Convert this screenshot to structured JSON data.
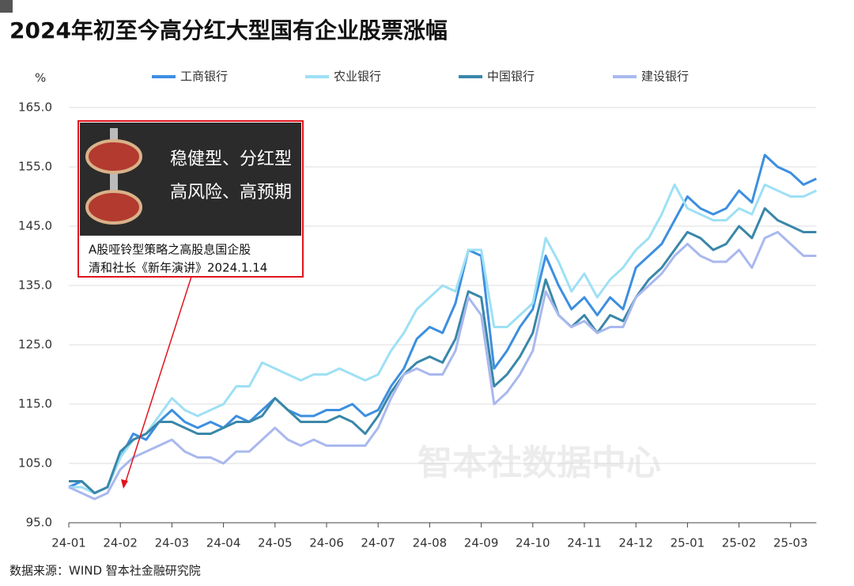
{
  "chart_data": {
    "type": "line",
    "title": "2024年初至今高分红大型国有企业股票涨幅",
    "y_label": "%",
    "source": "数据来源：WIND 智本社金融研究院",
    "watermark": "智本社数据中心",
    "annotation": {
      "lines": [
        "稳健型、分红型",
        "高风险、高预期"
      ],
      "caption": [
        "A股哑铃型策略之高股息国企股",
        "清和社长《新年演讲》2024.1.14"
      ]
    },
    "categories": [
      "24-01",
      null,
      null,
      null,
      "24-02",
      null,
      null,
      null,
      "24-03",
      null,
      null,
      null,
      "24-04",
      null,
      null,
      null,
      "24-05",
      null,
      null,
      null,
      "24-06",
      null,
      null,
      null,
      "24-07",
      null,
      null,
      null,
      "24-08",
      null,
      null,
      null,
      "24-09",
      null,
      null,
      null,
      "24-10",
      null,
      null,
      null,
      "24-11",
      null,
      null,
      null,
      "24-12",
      null,
      null,
      null,
      "25-01",
      null,
      null,
      null,
      "25-02",
      null,
      null,
      null,
      "25-03",
      null,
      null
    ],
    "ylim": [
      95,
      165
    ],
    "yticks": [
      {
        "value": 95,
        "label": "95.0"
      },
      {
        "value": 105,
        "label": "105.0"
      },
      {
        "value": 115,
        "label": "115.0"
      },
      {
        "value": 125,
        "label": "125.0"
      },
      {
        "value": 135,
        "label": "135.0"
      },
      {
        "value": 145,
        "label": "145.0"
      },
      {
        "value": 155,
        "label": "155.0"
      },
      {
        "value": 165,
        "label": "165.0"
      }
    ],
    "grid": true,
    "series": [
      {
        "name": "工商银行",
        "color": "#3d8fe0",
        "values": [
          101,
          102,
          100,
          101,
          106,
          110,
          109,
          112,
          114,
          112,
          111,
          112,
          111,
          113,
          112,
          114,
          116,
          114,
          113,
          113,
          114,
          114,
          115,
          113,
          114,
          118,
          121,
          126,
          128,
          127,
          132,
          141,
          140,
          121,
          124,
          128,
          131,
          140,
          135,
          131,
          133,
          130,
          133,
          131,
          138,
          140,
          142,
          146,
          150,
          148,
          147,
          148,
          151,
          149,
          157,
          155,
          154,
          152,
          153
        ]
      },
      {
        "name": "农业银行",
        "color": "#9ee0f5",
        "values": [
          101,
          101,
          100,
          101,
          106,
          109,
          110,
          113,
          116,
          114,
          113,
          114,
          115,
          118,
          118,
          122,
          121,
          120,
          119,
          120,
          120,
          121,
          120,
          119,
          120,
          124,
          127,
          131,
          133,
          135,
          134,
          141,
          141,
          128,
          128,
          130,
          132,
          143,
          139,
          134,
          137,
          133,
          136,
          138,
          141,
          143,
          147,
          152,
          148,
          147,
          146,
          146,
          148,
          147,
          152,
          151,
          150,
          150,
          151
        ]
      },
      {
        "name": "中国银行",
        "color": "#3a87a8",
        "values": [
          102,
          102,
          100,
          101,
          107,
          109,
          110,
          112,
          112,
          111,
          110,
          110,
          111,
          112,
          112,
          113,
          116,
          114,
          112,
          112,
          112,
          113,
          112,
          110,
          113,
          117,
          120,
          122,
          123,
          122,
          126,
          134,
          133,
          118,
          120,
          123,
          127,
          136,
          130,
          128,
          130,
          127,
          130,
          129,
          133,
          136,
          138,
          141,
          144,
          143,
          141,
          142,
          145,
          143,
          148,
          146,
          145,
          144,
          144
        ]
      },
      {
        "name": "建设银行",
        "color": "#a9b8ee",
        "values": [
          101,
          100,
          99,
          100,
          104,
          106,
          107,
          108,
          109,
          107,
          106,
          106,
          105,
          107,
          107,
          109,
          111,
          109,
          108,
          109,
          108,
          108,
          108,
          108,
          111,
          116,
          120,
          121,
          120,
          120,
          124,
          133,
          130,
          115,
          117,
          120,
          124,
          134,
          130,
          128,
          129,
          127,
          128,
          128,
          133,
          135,
          137,
          140,
          142,
          140,
          139,
          139,
          141,
          138,
          143,
          144,
          142,
          140,
          140
        ]
      }
    ]
  }
}
